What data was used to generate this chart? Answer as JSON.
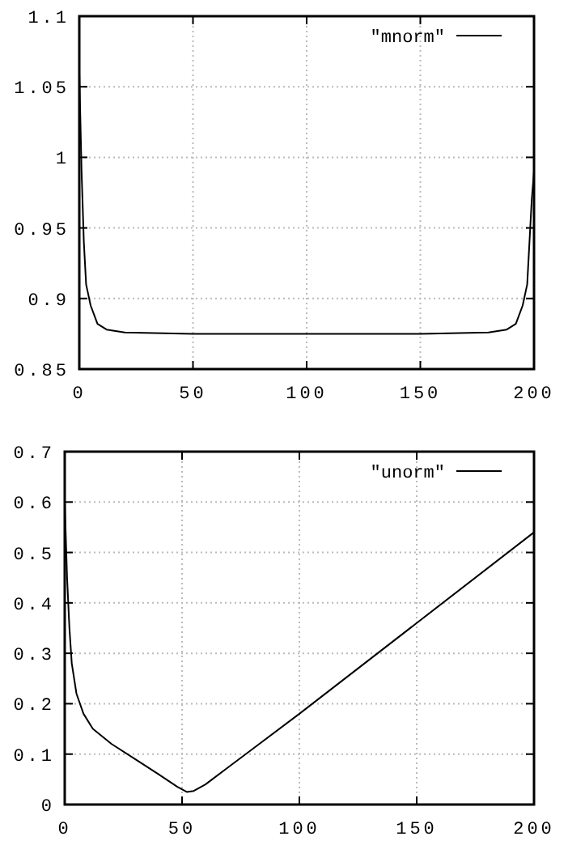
{
  "chart_data": [
    {
      "type": "line",
      "x": [
        0,
        1,
        2,
        3,
        5,
        8,
        12,
        20,
        50,
        100,
        150,
        180,
        188,
        192,
        195,
        197,
        198,
        199,
        200
      ],
      "xlim": [
        0,
        200
      ],
      "xticks": [
        0,
        50,
        100,
        150,
        200
      ],
      "ylim": [
        0.85,
        1.1
      ],
      "yticks": [
        0.85,
        0.9,
        0.95,
        1,
        1.05,
        1.1
      ],
      "grid": true,
      "legend": "top right",
      "series": [
        {
          "name": "\"mnorm\"",
          "color": "#000000",
          "values": [
            1.06,
            0.99,
            0.94,
            0.91,
            0.895,
            0.882,
            0.878,
            0.876,
            0.875,
            0.875,
            0.875,
            0.876,
            0.878,
            0.882,
            0.895,
            0.91,
            0.94,
            0.97,
            0.99
          ]
        }
      ]
    },
    {
      "type": "line",
      "x": [
        0,
        1,
        2,
        3,
        5,
        8,
        12,
        20,
        30,
        40,
        48,
        52,
        55,
        60,
        70,
        80,
        100,
        150,
        200
      ],
      "xlim": [
        0,
        200
      ],
      "xticks": [
        0,
        50,
        100,
        150,
        200
      ],
      "ylim": [
        0,
        0.7
      ],
      "yticks": [
        0,
        0.1,
        0.2,
        0.3,
        0.4,
        0.5,
        0.6,
        0.7
      ],
      "grid": true,
      "legend": "top right",
      "series": [
        {
          "name": "\"unorm\"",
          "color": "#000000",
          "values": [
            0.6,
            0.45,
            0.35,
            0.28,
            0.22,
            0.18,
            0.15,
            0.12,
            0.09,
            0.06,
            0.035,
            0.025,
            0.027,
            0.04,
            0.075,
            0.11,
            0.18,
            0.36,
            0.54
          ]
        }
      ]
    }
  ]
}
